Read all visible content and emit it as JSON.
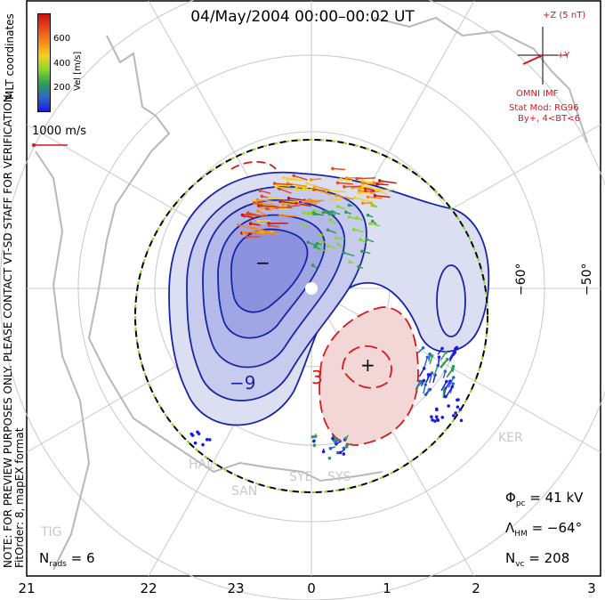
{
  "title": "04/May/2004 00:00–00:02 UT",
  "colorbar": {
    "label": "Vel [m/s]",
    "ticks": [
      "600",
      "400",
      "200"
    ],
    "colors": [
      "#1a1ae6",
      "#2e66c8",
      "#2e9e57",
      "#8ad62b",
      "#f2d21d",
      "#f58a19",
      "#e8481a",
      "#cc1414"
    ]
  },
  "coord_label": "MLT coordinates",
  "scale_label": "1000 m/s",
  "imf": {
    "axis_z": "+Z (5 nT)",
    "axis_y": "+Y",
    "source": "OMNI IMF",
    "model_line1": "Stat Mod: RG96",
    "model_line2": "By+, 4<BT<6"
  },
  "note": "NOTE: FOR PREVIEW PURPOSES ONLY. PLEASE CONTACT VT-SD STAFF FOR VERIFICATION.",
  "fit_order": "FitOrder: 8, mapEX format",
  "stats": {
    "n_rads_label": "N",
    "n_rads_sub": "rads",
    "n_rads_value": "= 6",
    "phi_pc_label": "Φ",
    "phi_pc_sub": "pc",
    "phi_pc_value": "= 41 kV",
    "lambda_hm_label": "Λ",
    "lambda_hm_sub": "HM",
    "lambda_hm_value": "= −64°",
    "n_vc_label": "N",
    "n_vc_sub": "vc",
    "n_vc_value": "= 208"
  },
  "mlt_labels": [
    "21",
    "22",
    "23",
    "0",
    "1",
    "2",
    "3"
  ],
  "lat_labels": [
    "−60°",
    "−50°"
  ],
  "sites": [
    "HAL",
    "SAN",
    "SYE",
    "SYS",
    "KER",
    "TIG"
  ],
  "contours": {
    "negative_label": "−9",
    "positive_label": "3",
    "min_marker": "−",
    "max_marker": "+",
    "negative_color": "#1a24a8",
    "positive_color": "#d81818"
  }
}
